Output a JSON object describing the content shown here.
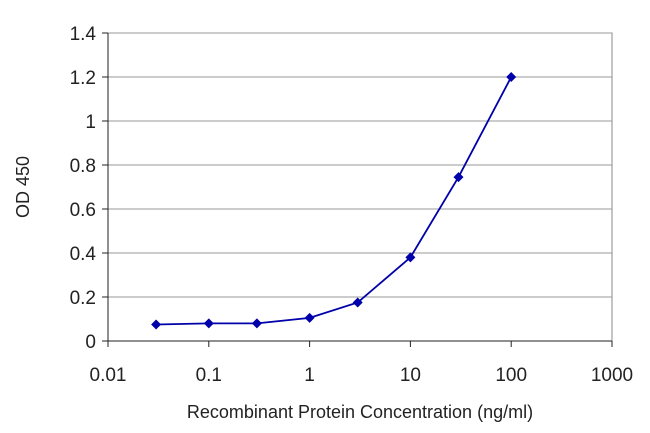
{
  "chart_data": {
    "type": "line",
    "title": "",
    "xlabel": "Recombinant Protein Concentration (ng/ml)",
    "ylabel": "OD 450",
    "x_scale": "log",
    "xlim": [
      0.01,
      1000
    ],
    "ylim": [
      0,
      1.4
    ],
    "x_ticks": [
      "0.01",
      "0.1",
      "1",
      "10",
      "100",
      "1000"
    ],
    "y_ticks": [
      "0",
      "0.2",
      "0.4",
      "0.6",
      "0.8",
      "1",
      "1.2",
      "1.4"
    ],
    "grid": "horizontal",
    "legend": "none",
    "series": [
      {
        "x": [
          0.03,
          0.1,
          0.3,
          1,
          3,
          10,
          30,
          100
        ],
        "values": [
          0.075,
          0.08,
          0.08,
          0.105,
          0.175,
          0.38,
          0.745,
          1.2
        ],
        "color": "#0000aa"
      }
    ]
  }
}
